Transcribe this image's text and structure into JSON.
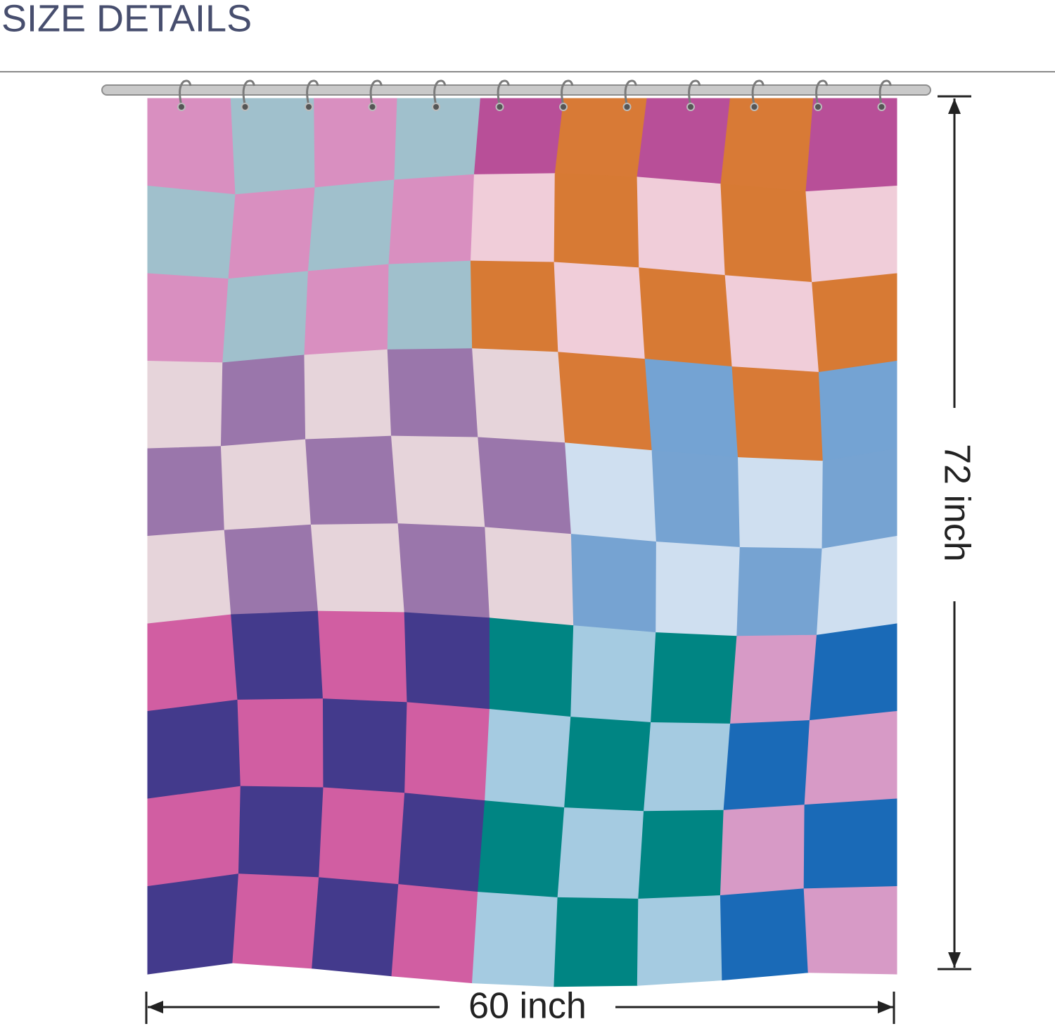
{
  "header": {
    "title": "SIZE DETAILS"
  },
  "dimensions": {
    "width": "60 inch",
    "height": "72 inch"
  }
}
